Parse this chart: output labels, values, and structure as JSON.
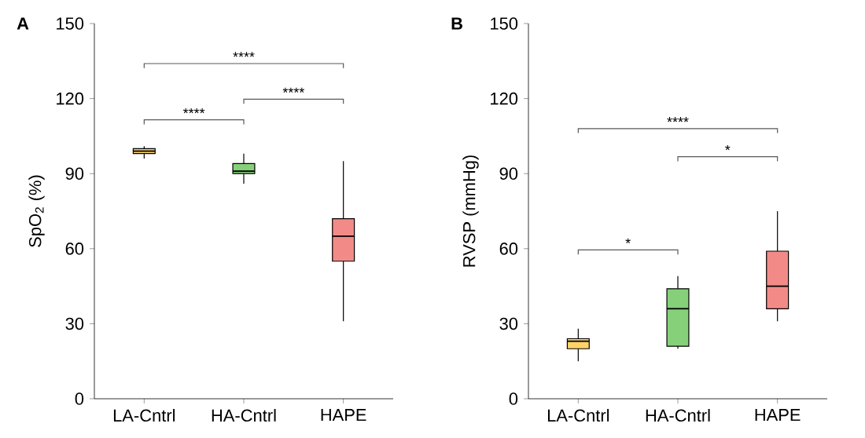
{
  "chart_data": [
    {
      "type": "box",
      "title": "A",
      "ylabel": "SpO$_{2}$ (%)",
      "categories": [
        "LA-Cntrl",
        "HA-Cntrl",
        "HAPE"
      ],
      "colors": [
        "#fdd36a",
        "#86d07a",
        "#f28b87"
      ],
      "boxes": [
        {
          "low": 96,
          "q1": 98,
          "median": 99,
          "q3": 100,
          "high": 101
        },
        {
          "low": 86,
          "q1": 90,
          "median": 91,
          "q3": 94,
          "high": 98
        },
        {
          "low": 31,
          "q1": 55,
          "median": 65,
          "q3": 72,
          "high": 95
        }
      ],
      "ylim": [
        0,
        150
      ],
      "yticks": [
        0,
        30,
        60,
        90,
        120,
        150
      ],
      "grid": false,
      "annotations": [
        "****",
        "****",
        "****"
      ]
    },
    {
      "type": "box",
      "title": "B",
      "ylabel": "RVSP (mmHg)",
      "categories": [
        "LA-Cntrl",
        "HA-Cntrl",
        "HAPE"
      ],
      "colors": [
        "#fdd36a",
        "#86d07a",
        "#f28b87"
      ],
      "boxes": [
        {
          "low": 15,
          "q1": 20,
          "median": 23,
          "q3": 24,
          "high": 28
        },
        {
          "low": 20,
          "q1": 21,
          "median": 36,
          "q3": 44,
          "high": 49
        },
        {
          "low": 31,
          "q1": 36,
          "median": 45,
          "q3": 59,
          "high": 75
        }
      ],
      "ylim": [
        0,
        150
      ],
      "yticks": [
        0,
        30,
        60,
        90,
        120,
        150
      ],
      "grid": false,
      "annotations": [
        "****",
        "*",
        "*"
      ]
    }
  ]
}
